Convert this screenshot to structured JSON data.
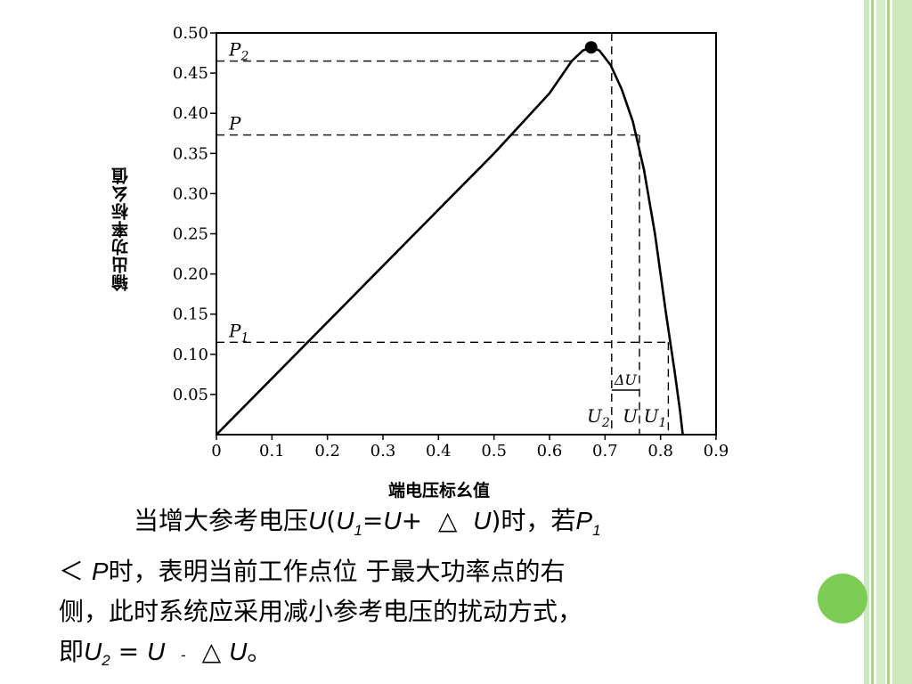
{
  "chart_data": {
    "type": "line",
    "xlabel": "端电压标幺值",
    "ylabel": "输出功率标幺值",
    "xlim": [
      0,
      0.9
    ],
    "ylim": [
      0,
      0.5
    ],
    "xticks": [
      "0",
      "0.1",
      "0.2",
      "0.3",
      "0.4",
      "0.5",
      "0.6",
      "0.7",
      "0.8",
      "0.9"
    ],
    "yticks": [
      "0.05",
      "0.10",
      "0.15",
      "0.20",
      "0.25",
      "0.30",
      "0.35",
      "0.40",
      "0.45",
      "0.50"
    ],
    "series": [
      {
        "x": [
          0,
          0.1,
          0.2,
          0.3,
          0.4,
          0.5,
          0.6,
          0.64,
          0.66,
          0.675,
          0.69,
          0.71,
          0.73,
          0.75,
          0.77,
          0.79,
          0.81,
          0.825,
          0.835,
          0.84
        ],
        "y": [
          0,
          0.07,
          0.14,
          0.21,
          0.28,
          0.35,
          0.425,
          0.465,
          0.478,
          0.482,
          0.478,
          0.46,
          0.43,
          0.39,
          0.33,
          0.25,
          0.15,
          0.08,
          0.03,
          0
        ]
      }
    ],
    "max_point": {
      "x": 0.675,
      "y": 0.482
    },
    "levels": [
      {
        "label": "P",
        "sub": "2",
        "y": 0.465,
        "x": 0.69
      },
      {
        "label": "P",
        "sub": "",
        "y": 0.373,
        "x": 0.762
      },
      {
        "label": "P",
        "sub": "1",
        "y": 0.115,
        "x": 0.814
      }
    ],
    "verticals": [
      {
        "x": 0.712,
        "label": "U",
        "sub": "2"
      },
      {
        "x": 0.762,
        "label": "U",
        "sub": ""
      },
      {
        "x": 0.814,
        "label": "U",
        "sub": "1"
      }
    ],
    "delta_label": "ΔU"
  },
  "text": {
    "l1a": "当增大参考电压",
    "u1": "U",
    "l1b": "(",
    "u2": "U",
    "sub1": "1",
    "eq1": "=",
    "u3": "U",
    "plus": "+",
    "tri1": "△",
    "u4": "U",
    "l1c": ")时，若",
    "p1": "P",
    "sub_p1": "1",
    "lt": "＜",
    "p2": "P",
    "l2": "时，表明当前工作点位  于最大功率点的右",
    "l3": "侧，此时系统应采用减小参考电压的扰动方式，",
    "l4a": "即",
    "u5": "U",
    "sub2": "2",
    "eq2": " = ",
    "u6": "U",
    "minus": "-",
    "tri2": "△",
    "u7": "U",
    "end": "。"
  },
  "colors": {
    "border_light": "#cde8bd",
    "border_mid": "#9fd07f",
    "dot": "#7ccc55"
  }
}
